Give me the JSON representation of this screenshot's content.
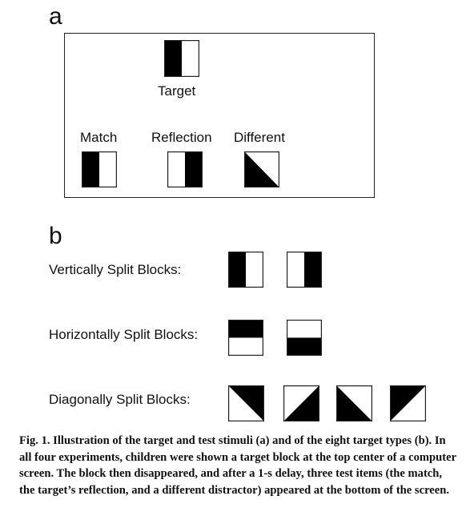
{
  "panel_a": {
    "letter": "a",
    "target_label": "Target",
    "options": [
      {
        "label": "Match",
        "block": "vert-left-black"
      },
      {
        "label": "Reflection",
        "block": "vert-right-black"
      },
      {
        "label": "Different",
        "block": "diag-bottom-left-black"
      }
    ],
    "target_block": "vert-left-black"
  },
  "panel_b": {
    "letter": "b",
    "rows": [
      {
        "label": "Vertically Split Blocks:",
        "blocks": [
          "vert-left-black",
          "vert-right-black"
        ]
      },
      {
        "label": "Horizontally Split Blocks:",
        "blocks": [
          "horiz-top-black",
          "horiz-bottom-black"
        ]
      },
      {
        "label": "Diagonally Split Blocks:",
        "blocks": [
          "diag-top-right-black",
          "diag-bottom-right-black",
          "diag-bottom-left-black",
          "diag-top-left-black"
        ]
      }
    ]
  },
  "caption": {
    "label": "Fig. 1.",
    "text": "Illustration of the target and test stimuli (a) and of the eight target types (b). In all four experiments, children were shown a target block at the top center of a computer screen. The block then disappeared, and after a 1-s delay, three test items (the match, the target’s reflection, and a different distractor) appeared at the bottom of the screen."
  },
  "colors": {
    "ink": "#111111",
    "fill": "#000000",
    "background": "#ffffff"
  }
}
